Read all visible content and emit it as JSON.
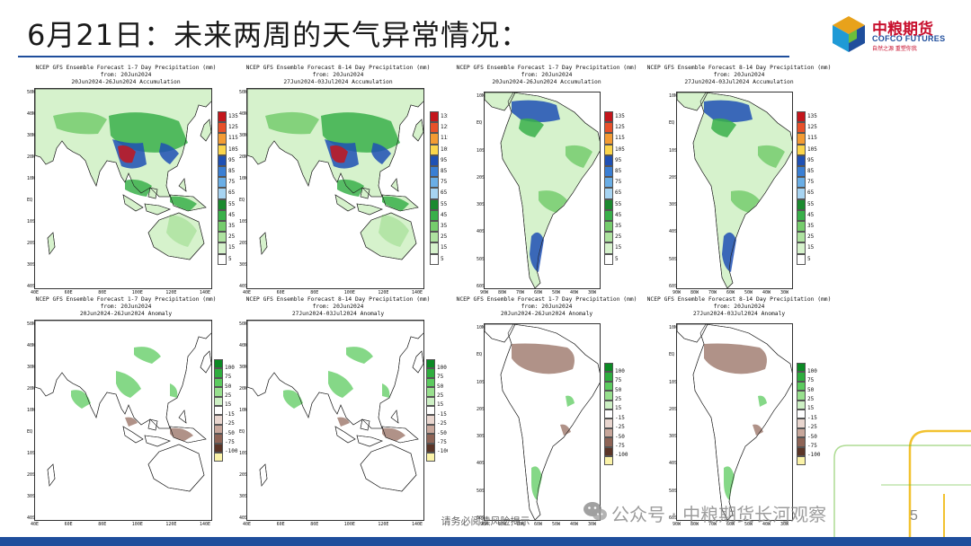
{
  "slide": {
    "title": "6月21日：未来两周的天气异常情况：",
    "footer_note": "请务必阅读风险揭示",
    "page_number": "5"
  },
  "brand": {
    "name": "中粮期货",
    "english": "COFCO FUTURES",
    "tagline": "自然之源 重塑你我",
    "logo_colors": [
      "#e8a21b",
      "#1f9ad6",
      "#1f4e9c",
      "#6cbf3b"
    ]
  },
  "watermark": {
    "text": "公众号 · 中粮期货长河观察",
    "icon": "wechat-icon"
  },
  "colors": {
    "title_rule": "#1f4e9c",
    "bottom_bar": "#1f4e9c",
    "deco_yellow": "#f2c230",
    "deco_green": "#6cbf3b"
  },
  "precip_scale": {
    "labels": [
      "135",
      "125",
      "115",
      "105",
      "95",
      "85",
      "75",
      "65",
      "55",
      "45",
      "35",
      "25",
      "15",
      "5"
    ],
    "colors": [
      "#c4161c",
      "#e8512a",
      "#f39b33",
      "#fbd54b",
      "#1e50b4",
      "#3a7fd4",
      "#6aaee6",
      "#a7d4f2",
      "#1b8a2f",
      "#39b04a",
      "#76cd6d",
      "#aee3a0",
      "#d6f2cc",
      "#ffffff"
    ]
  },
  "anomaly_scale": {
    "labels": [
      "100",
      "75",
      "50",
      "25",
      "15",
      "-15",
      "-25",
      "-50",
      "-75",
      "-100"
    ],
    "colors": [
      "#0b8a24",
      "#2fae3f",
      "#5ccb5f",
      "#98e08e",
      "#cdf0c4",
      "#ffffff",
      "#e9d6cf",
      "#c8a79b",
      "#8e6456",
      "#5b3527",
      "#fbf3a8"
    ]
  },
  "panels": [
    {
      "id": "asia-w1-acc",
      "region": "asia",
      "kind": "precip",
      "line1": "NCEP GFS Ensemble Forecast 1-7 Day Precipitation (mm)",
      "line2": "from: 20Jun2024",
      "line3": "20Jun2024-26Jun2024 Accumulation",
      "lat_labels": [
        "50N",
        "40N",
        "30N",
        "20N",
        "10N",
        "EQ",
        "10S",
        "20S",
        "30S",
        "40S"
      ],
      "lon_labels": [
        "40E",
        "60E",
        "80E",
        "100E",
        "120E",
        "140E"
      ]
    },
    {
      "id": "asia-w2-acc",
      "region": "asia",
      "kind": "precip",
      "line1": "NCEP GFS Ensemble Forecast 8-14 Day Precipitation (mm)",
      "line2": "from: 20Jun2024",
      "line3": "27Jun2024-03Jul2024 Accumulation",
      "lat_labels": [
        "50N",
        "40N",
        "30N",
        "20N",
        "10N",
        "EQ",
        "10S",
        "20S",
        "30S",
        "40S"
      ],
      "lon_labels": [
        "40E",
        "60E",
        "80E",
        "100E",
        "120E",
        "140E"
      ]
    },
    {
      "id": "sa-w1-acc",
      "region": "samerica",
      "kind": "precip",
      "line1": "NCEP GFS Ensemble Forecast 1-7 Day Precipitation (mm)",
      "line2": "from: 20Jun2024",
      "line3": "20Jun2024-26Jun2024 Accumulation",
      "lat_labels": [
        "10N",
        "EQ",
        "10S",
        "20S",
        "30S",
        "40S",
        "50S",
        "60S"
      ],
      "lon_labels": [
        "90W",
        "80W",
        "70W",
        "60W",
        "50W",
        "40W",
        "30W"
      ]
    },
    {
      "id": "sa-w2-acc",
      "region": "samerica",
      "kind": "precip",
      "line1": "NCEP GFS Ensemble Forecast 8-14 Day Precipitation (mm)",
      "line2": "from: 20Jun2024",
      "line3": "27Jun2024-03Jul2024 Accumulation",
      "lat_labels": [
        "10N",
        "EQ",
        "10S",
        "20S",
        "30S",
        "40S",
        "50S",
        "60S"
      ],
      "lon_labels": [
        "90W",
        "80W",
        "70W",
        "60W",
        "50W",
        "40W",
        "30W"
      ]
    },
    {
      "id": "asia-w1-anom",
      "region": "asia",
      "kind": "anomaly",
      "line1": "NCEP GFS Ensemble Forecast 1-7 Day Precipitation (mm)",
      "line2": "from: 20Jun2024",
      "line3": "20Jun2024-26Jun2024 Anomaly",
      "lat_labels": [
        "50N",
        "40N",
        "30N",
        "20N",
        "10N",
        "EQ",
        "10S",
        "20S",
        "30S",
        "40S"
      ],
      "lon_labels": [
        "40E",
        "60E",
        "80E",
        "100E",
        "120E",
        "140E"
      ]
    },
    {
      "id": "asia-w2-anom",
      "region": "asia",
      "kind": "anomaly",
      "line1": "NCEP GFS Ensemble Forecast 8-14 Day Precipitation (mm)",
      "line2": "from: 20Jun2024",
      "line3": "27Jun2024-03Jul2024 Anomaly",
      "lat_labels": [
        "50N",
        "40N",
        "30N",
        "20N",
        "10N",
        "EQ",
        "10S",
        "20S",
        "30S",
        "40S"
      ],
      "lon_labels": [
        "40E",
        "60E",
        "80E",
        "100E",
        "120E",
        "140E"
      ]
    },
    {
      "id": "sa-w1-anom",
      "region": "samerica",
      "kind": "anomaly",
      "line1": "NCEP GFS Ensemble Forecast 1-7 Day Precipitation (mm)",
      "line2": "from: 20Jun2024",
      "line3": "20Jun2024-26Jun2024 Anomaly",
      "lat_labels": [
        "10N",
        "EQ",
        "10S",
        "20S",
        "30S",
        "40S",
        "50S",
        "60S"
      ],
      "lon_labels": [
        "90W",
        "80W",
        "70W",
        "60W",
        "50W",
        "40W",
        "30W"
      ]
    },
    {
      "id": "sa-w2-anom",
      "region": "samerica",
      "kind": "anomaly",
      "line1": "NCEP GFS Ensemble Forecast 8-14 Day Precipitation (mm)",
      "line2": "from: 20Jun2024",
      "line3": "27Jun2024-03Jul2024 Anomaly",
      "lat_labels": [
        "10N",
        "EQ",
        "10S",
        "20S",
        "30S",
        "40S",
        "50S",
        "60S"
      ],
      "lon_labels": [
        "90W",
        "80W",
        "70W",
        "60W",
        "50W",
        "40W",
        "30W"
      ]
    }
  ]
}
